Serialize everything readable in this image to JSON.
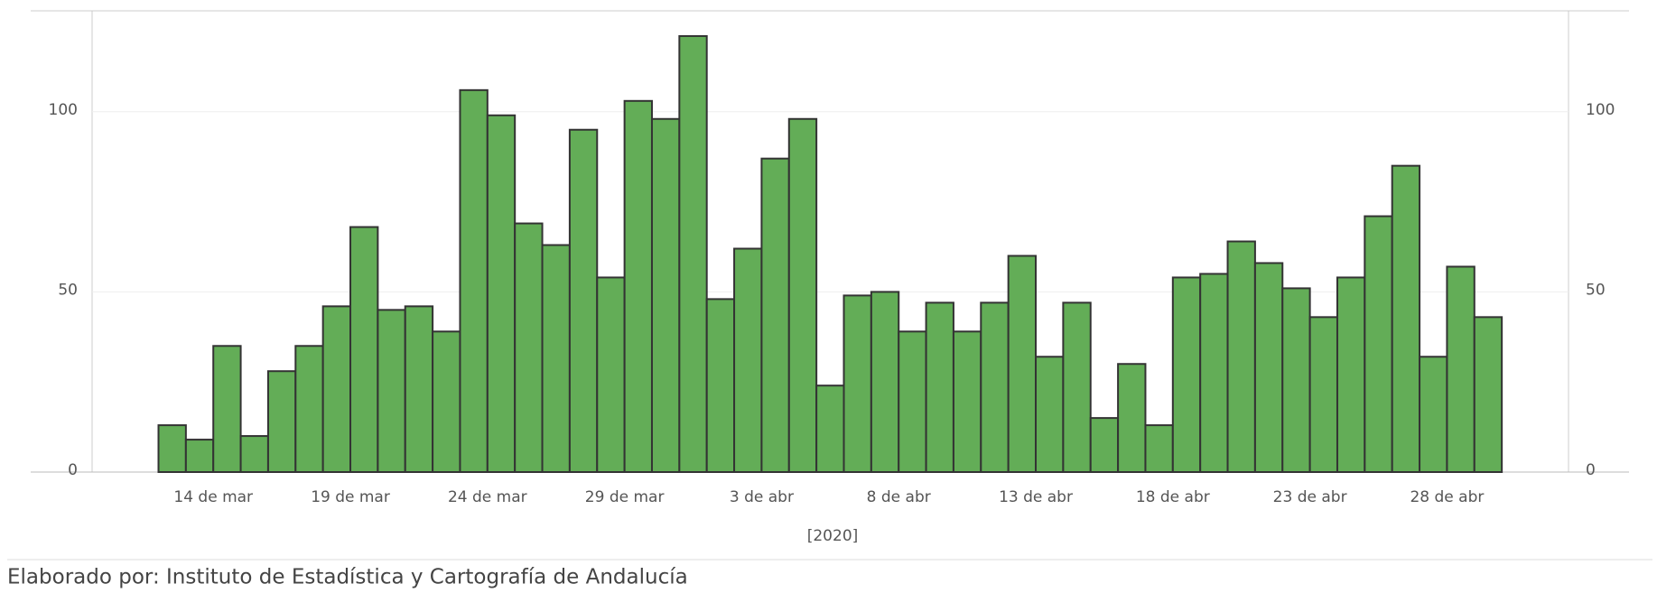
{
  "chart_data": {
    "type": "bar",
    "x_label": "[2020]",
    "categories": [
      null,
      null,
      "14 de mar",
      null,
      null,
      null,
      null,
      "19 de mar",
      null,
      null,
      null,
      null,
      "24 de mar",
      null,
      null,
      null,
      null,
      "29 de mar",
      null,
      null,
      null,
      null,
      "3 de abr",
      null,
      null,
      null,
      null,
      "8 de abr",
      null,
      null,
      null,
      null,
      "13 de abr",
      null,
      null,
      null,
      null,
      "18 de abr",
      null,
      null,
      null,
      null,
      "23 de abr",
      null,
      null,
      null,
      null,
      "28 de abr",
      null
    ],
    "values": [
      13,
      9,
      35,
      10,
      28,
      35,
      46,
      68,
      45,
      46,
      39,
      106,
      99,
      69,
      63,
      95,
      54,
      103,
      98,
      121,
      48,
      62,
      87,
      98,
      24,
      49,
      50,
      39,
      47,
      39,
      47,
      60,
      32,
      47,
      15,
      30,
      13,
      54,
      55,
      64,
      58,
      51,
      43,
      54,
      71,
      85,
      32,
      57,
      43
    ],
    "color": "#63ad57",
    "ylim": [
      0,
      128
    ],
    "yticks": [
      0,
      50,
      100
    ],
    "y2lim": [
      0,
      128
    ],
    "y2ticks": [
      0,
      50,
      100
    ],
    "grid": true
  },
  "footer": "Elaborado por: Instituto de Estadística y Cartografía de Andalucía"
}
